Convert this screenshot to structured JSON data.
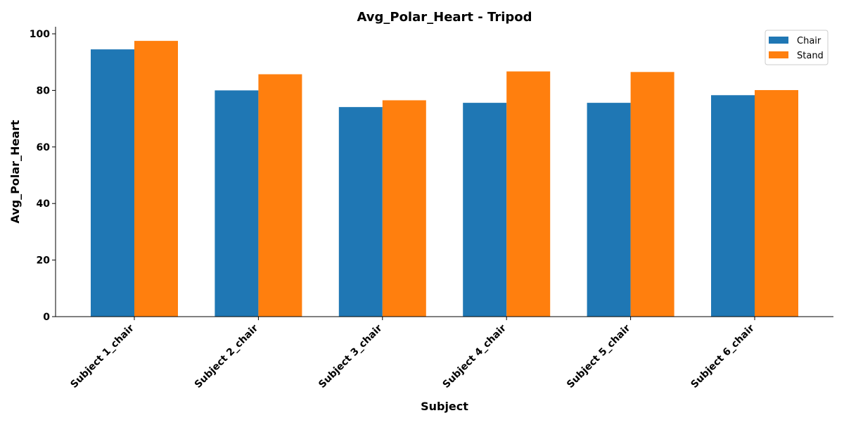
{
  "chart_data": {
    "type": "bar",
    "title": "Avg_Polar_Heart - Tripod",
    "xlabel": "Subject",
    "ylabel": "Avg_Polar_Heart",
    "categories": [
      "Subject 1_chair",
      "Subject 2_chair",
      "Subject 3_chair",
      "Subject 4_chair",
      "Subject 5_chair",
      "Subject 6_chair"
    ],
    "series": [
      {
        "name": "Chair",
        "color": "#1f77b4",
        "values": [
          94.5,
          80.0,
          74.1,
          75.6,
          75.6,
          78.3
        ]
      },
      {
        "name": "Stand",
        "color": "#ff7f0e",
        "values": [
          97.5,
          85.7,
          76.5,
          86.7,
          86.5,
          80.1
        ]
      }
    ],
    "ylim": [
      0,
      102.5
    ],
    "yticks": [
      0,
      20,
      40,
      60,
      80,
      100
    ],
    "grid": false,
    "legend_position": "top-right"
  }
}
